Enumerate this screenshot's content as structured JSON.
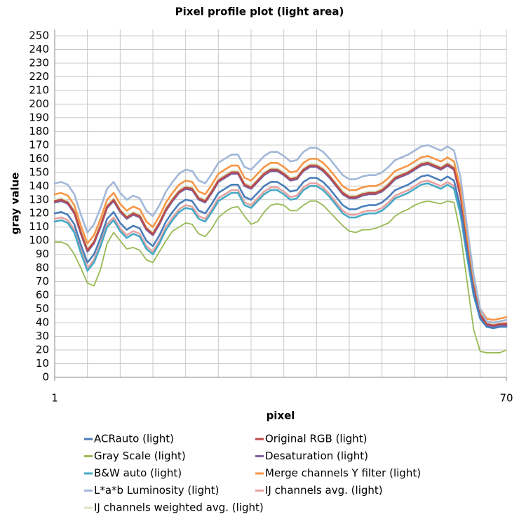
{
  "chart_data": {
    "type": "line",
    "title": "Pixel profile plot (light area)",
    "x_label": "pixel",
    "y_label": "gray value",
    "x": [
      1,
      2,
      3,
      4,
      5,
      6,
      7,
      8,
      9,
      10,
      11,
      12,
      13,
      14,
      15,
      16,
      17,
      18,
      19,
      20,
      21,
      22,
      23,
      24,
      25,
      26,
      27,
      28,
      29,
      30,
      31,
      32,
      33,
      34,
      35,
      36,
      37,
      38,
      39,
      40,
      41,
      42,
      43,
      44,
      45,
      46,
      47,
      48,
      49,
      50,
      51,
      52,
      53,
      54,
      55,
      56,
      57,
      58,
      59,
      60,
      61,
      62,
      63,
      64,
      65,
      66,
      67,
      68,
      69,
      70
    ],
    "xlim": [
      1,
      70
    ],
    "xticks": [
      1,
      70
    ],
    "xgrid_step": 5,
    "ylim": [
      0,
      250
    ],
    "yticks": [
      0,
      10,
      20,
      30,
      40,
      50,
      60,
      70,
      80,
      90,
      100,
      110,
      120,
      130,
      140,
      150,
      160,
      170,
      180,
      190,
      200,
      210,
      220,
      230,
      240,
      250
    ],
    "grid": true,
    "series": [
      {
        "name": "ACRauto (light)",
        "color": "#4a7ebb",
        "values": [
          120,
          121,
          119,
          112,
          97,
          84,
          90,
          102,
          116,
          121,
          113,
          108,
          111,
          109,
          100,
          96,
          104,
          114,
          121,
          127,
          130,
          129,
          122,
          120,
          127,
          135,
          138,
          141,
          141,
          132,
          130,
          135,
          140,
          143,
          143,
          140,
          136,
          137,
          143,
          146,
          146,
          143,
          138,
          132,
          126,
          123,
          123,
          125,
          126,
          126,
          128,
          132,
          137,
          139,
          141,
          144,
          147,
          148,
          146,
          144,
          147,
          144,
          124,
          92,
          62,
          43,
          37,
          36,
          37,
          37
        ]
      },
      {
        "name": "Original RGB (light)",
        "color": "#be4b48",
        "values": [
          129,
          130,
          128,
          121,
          106,
          93,
          99,
          111,
          125,
          130,
          122,
          117,
          120,
          118,
          109,
          105,
          113,
          123,
          130,
          136,
          139,
          138,
          131,
          129,
          136,
          144,
          147,
          150,
          150,
          141,
          139,
          144,
          149,
          152,
          152,
          149,
          145,
          146,
          152,
          155,
          155,
          152,
          147,
          141,
          135,
          132,
          132,
          134,
          135,
          135,
          137,
          141,
          146,
          148,
          150,
          153,
          156,
          157,
          155,
          153,
          156,
          153,
          133,
          100,
          68,
          46,
          39,
          38,
          39,
          39
        ]
      },
      {
        "name": "Gray Scale (light)",
        "color": "#98b954",
        "values": [
          99,
          99,
          97,
          90,
          80,
          69,
          67,
          79,
          98,
          106,
          100,
          94,
          95,
          93,
          86,
          84,
          92,
          100,
          107,
          110,
          113,
          112,
          105,
          103,
          109,
          117,
          121,
          124,
          125,
          118,
          112,
          114,
          121,
          126,
          127,
          126,
          122,
          122,
          126,
          129,
          129,
          126,
          121,
          116,
          111,
          107,
          106,
          108,
          108,
          109,
          111,
          113,
          118,
          121,
          123,
          126,
          128,
          129,
          128,
          127,
          129,
          128,
          105,
          70,
          35,
          19,
          18,
          18,
          18,
          20
        ]
      },
      {
        "name": "Desaturation (light)",
        "color": "#7d60a0",
        "values": [
          128,
          129,
          127,
          120,
          105,
          92,
          98,
          110,
          124,
          129,
          121,
          116,
          119,
          117,
          108,
          104,
          112,
          122,
          129,
          135,
          138,
          137,
          130,
          128,
          135,
          143,
          146,
          149,
          149,
          140,
          138,
          143,
          148,
          151,
          151,
          148,
          144,
          145,
          151,
          154,
          154,
          151,
          146,
          140,
          134,
          131,
          131,
          133,
          134,
          134,
          136,
          140,
          145,
          147,
          149,
          152,
          155,
          156,
          154,
          152,
          155,
          152,
          132,
          99,
          66,
          45,
          38,
          37,
          38,
          38
        ]
      },
      {
        "name": "B&W auto (light)",
        "color": "#46aac5",
        "values": [
          114,
          115,
          113,
          106,
          91,
          78,
          84,
          96,
          110,
          115,
          107,
          102,
          105,
          103,
          94,
          90,
          98,
          108,
          115,
          121,
          124,
          123,
          116,
          114,
          121,
          129,
          132,
          135,
          135,
          126,
          124,
          129,
          134,
          137,
          137,
          134,
          130,
          131,
          137,
          140,
          140,
          137,
          132,
          126,
          120,
          117,
          117,
          119,
          120,
          120,
          122,
          126,
          131,
          133,
          135,
          138,
          141,
          142,
          140,
          138,
          141,
          138,
          119,
          88,
          60,
          43,
          37,
          36,
          37,
          38
        ]
      },
      {
        "name": "Merge channels Y filter (light)",
        "color": "#f79646",
        "values": [
          134,
          135,
          133,
          126,
          111,
          98,
          104,
          116,
          130,
          135,
          127,
          122,
          125,
          123,
          114,
          110,
          118,
          128,
          135,
          141,
          144,
          143,
          136,
          134,
          141,
          149,
          152,
          155,
          155,
          146,
          144,
          149,
          154,
          157,
          157,
          154,
          150,
          151,
          157,
          160,
          160,
          157,
          152,
          146,
          140,
          137,
          137,
          139,
          140,
          140,
          142,
          146,
          151,
          153,
          155,
          158,
          161,
          162,
          160,
          158,
          161,
          158,
          138,
          104,
          72,
          50,
          43,
          42,
          43,
          44
        ]
      },
      {
        "name": "L*a*b Luminosity (light)",
        "color": "#a2b8d8",
        "values": [
          142,
          143,
          141,
          134,
          119,
          106,
          112,
          124,
          138,
          143,
          135,
          130,
          133,
          131,
          122,
          118,
          126,
          136,
          143,
          149,
          152,
          151,
          144,
          142,
          149,
          157,
          160,
          163,
          163,
          154,
          152,
          157,
          162,
          165,
          165,
          162,
          158,
          159,
          165,
          168,
          168,
          165,
          160,
          154,
          148,
          145,
          145,
          147,
          148,
          148,
          150,
          154,
          159,
          161,
          163,
          166,
          169,
          170,
          168,
          166,
          169,
          166,
          146,
          110,
          75,
          50,
          41,
          40,
          41,
          42
        ]
      },
      {
        "name": "IJ channels avg. (light)",
        "color": "#e6a2a0",
        "values": [
          116,
          117,
          115,
          108,
          93,
          80,
          86,
          98,
          112,
          117,
          109,
          104,
          107,
          105,
          96,
          92,
          100,
          110,
          117,
          123,
          126,
          125,
          118,
          116,
          123,
          131,
          134,
          137,
          137,
          128,
          126,
          131,
          136,
          139,
          139,
          136,
          132,
          133,
          139,
          142,
          142,
          139,
          134,
          128,
          122,
          119,
          119,
          121,
          122,
          122,
          124,
          128,
          133,
          135,
          137,
          140,
          143,
          144,
          142,
          140,
          143,
          140,
          121,
          90,
          61,
          44,
          39,
          38,
          39,
          40
        ]
      },
      {
        "name": "IJ channels weighted avg. (light)",
        "color": "#d7e4bd",
        "values": [
          130,
          131,
          129,
          122,
          107,
          94,
          100,
          112,
          126,
          131,
          123,
          118,
          121,
          119,
          110,
          106,
          114,
          124,
          131,
          137,
          140,
          139,
          132,
          130,
          137,
          145,
          148,
          151,
          151,
          142,
          140,
          145,
          150,
          153,
          153,
          150,
          146,
          147,
          153,
          156,
          156,
          153,
          148,
          142,
          136,
          133,
          133,
          135,
          136,
          136,
          138,
          142,
          147,
          149,
          151,
          154,
          157,
          158,
          156,
          154,
          157,
          154,
          134,
          101,
          69,
          47,
          40,
          39,
          40,
          40
        ]
      }
    ]
  }
}
